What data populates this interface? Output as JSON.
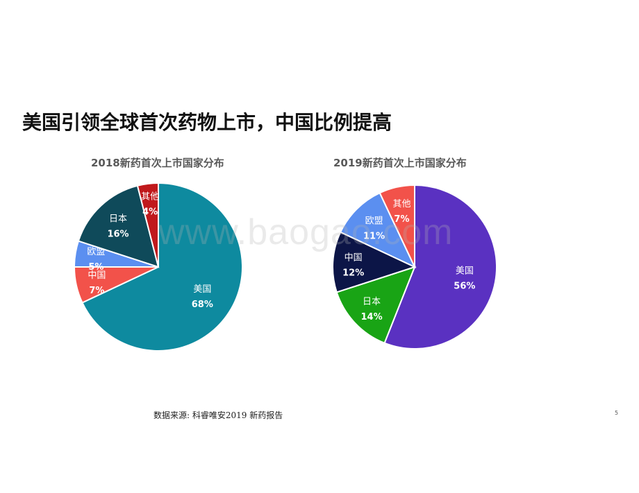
{
  "slide": {
    "title": "美国引领全球首次药物上市，中国比例提高",
    "source": "数据来源: 科睿唯安2019 新药报告",
    "page_number": "5",
    "watermark": "www.baogao.com"
  },
  "chart_data": [
    {
      "type": "pie",
      "title": "2018新药首次上市国家分布",
      "categories": [
        "美国",
        "中国",
        "欧盟",
        "日本",
        "其他"
      ],
      "values": [
        68,
        7,
        5,
        16,
        4
      ],
      "labels_pct": [
        "68%",
        "7%",
        "5%",
        "16%",
        "4%"
      ],
      "colors": [
        "#0e8a9f",
        "#f2524a",
        "#5b8ff0",
        "#0f4a5a",
        "#c0191c"
      ],
      "start_angle_deg": 0,
      "direction": "clockwise"
    },
    {
      "type": "pie",
      "title": "2019新药首次上市国家分布",
      "categories": [
        "美国",
        "日本",
        "中国",
        "欧盟",
        "其他"
      ],
      "values": [
        56,
        14,
        12,
        11,
        7
      ],
      "labels_pct": [
        "56%",
        "14%",
        "12%",
        "11%",
        "7%"
      ],
      "colors": [
        "#5a31c1",
        "#19a415",
        "#0c1547",
        "#5b8ff0",
        "#f2524a"
      ],
      "start_angle_deg": 0,
      "direction": "clockwise"
    }
  ]
}
